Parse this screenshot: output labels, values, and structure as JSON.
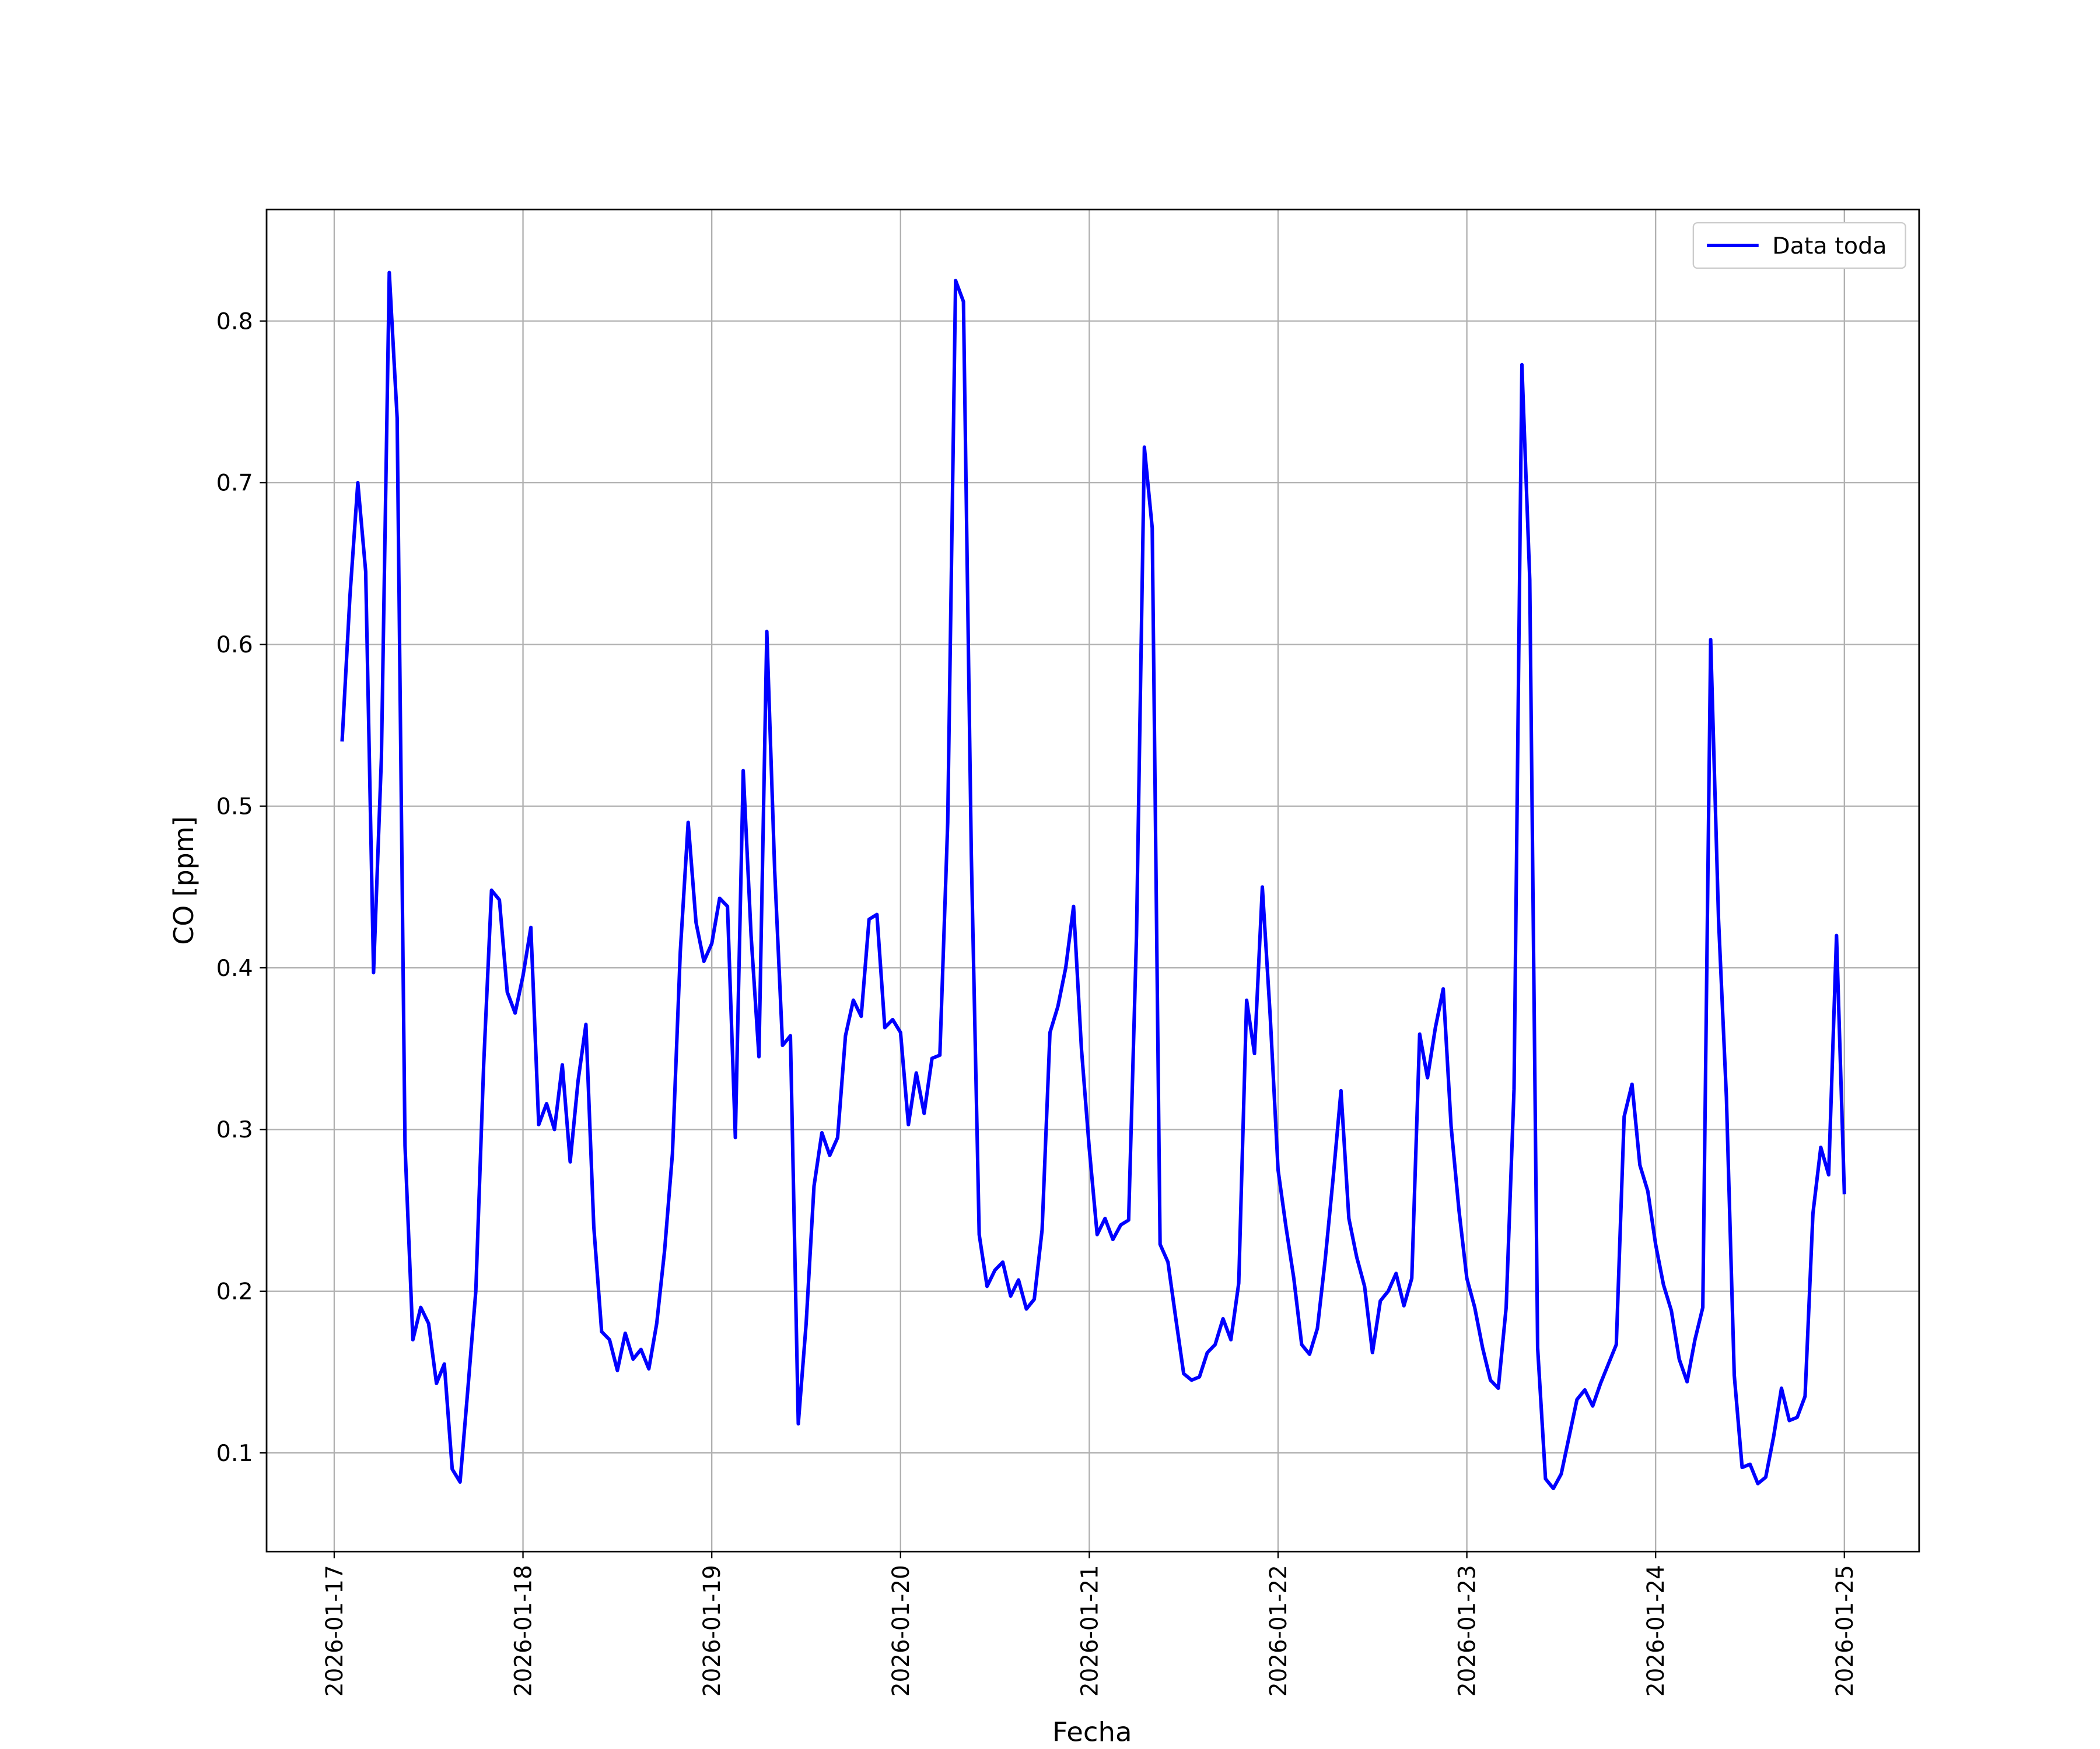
{
  "chart_data": {
    "type": "line",
    "x_label": "Fecha",
    "y_label": "CO [ppm]",
    "grid": true,
    "legend": "upper right",
    "x": [
      1,
      2,
      3,
      4,
      5,
      6,
      7,
      8,
      9,
      10,
      11,
      12,
      13,
      14,
      15,
      16,
      17,
      18,
      19,
      20,
      21,
      22,
      23,
      24,
      25,
      26,
      27,
      28,
      29,
      30,
      31,
      32,
      33,
      34,
      35,
      36,
      37,
      38,
      39,
      40,
      41,
      42,
      43,
      44,
      45,
      46,
      47,
      48,
      49,
      50,
      51,
      52,
      53,
      54,
      55,
      56,
      57,
      58,
      59,
      60,
      61,
      62,
      63,
      64,
      65,
      66,
      67,
      68,
      69,
      70,
      71,
      72,
      73,
      74,
      75,
      76,
      77,
      78,
      79,
      80,
      81,
      82,
      83,
      84,
      85,
      86,
      87,
      88,
      89,
      90,
      91,
      92,
      93,
      94,
      95,
      96,
      97,
      98,
      99,
      100,
      101,
      102,
      103,
      104,
      105,
      106,
      107,
      108,
      109,
      110,
      111,
      112,
      113,
      114,
      115,
      116,
      117,
      118,
      119,
      120,
      121,
      122,
      123,
      124,
      125,
      126,
      127,
      128,
      129,
      130,
      131,
      132,
      133,
      134,
      135,
      136,
      137,
      138,
      139,
      140,
      141,
      142,
      143,
      144,
      145,
      146,
      147,
      148,
      149,
      150,
      151,
      152,
      153,
      154,
      155,
      156,
      157,
      158,
      159,
      160,
      161,
      162,
      163,
      164,
      165,
      166,
      167,
      168,
      169,
      170,
      171,
      172,
      173,
      174,
      175,
      176,
      177,
      178,
      179,
      180,
      181,
      182,
      183,
      184,
      185,
      186,
      187,
      188,
      189,
      190,
      191,
      192
    ],
    "series": [
      {
        "name": "Data toda",
        "color": "#0000ff",
        "values": [
          0.54,
          0.63,
          0.7,
          0.645,
          0.397,
          0.53,
          0.83,
          0.74,
          0.29,
          0.17,
          0.19,
          0.18,
          0.143,
          0.155,
          0.09,
          0.082,
          0.14,
          0.2,
          0.34,
          0.448,
          0.442,
          0.385,
          0.372,
          0.395,
          0.425,
          0.303,
          0.316,
          0.3,
          0.34,
          0.28,
          0.33,
          0.365,
          0.24,
          0.175,
          0.17,
          0.151,
          0.174,
          0.158,
          0.164,
          0.152,
          0.18,
          0.225,
          0.285,
          0.41,
          0.49,
          0.428,
          0.404,
          0.415,
          0.443,
          0.438,
          0.295,
          0.522,
          0.42,
          0.345,
          0.608,
          0.46,
          0.352,
          0.358,
          0.118,
          0.18,
          0.265,
          0.298,
          0.284,
          0.295,
          0.358,
          0.38,
          0.37,
          0.43,
          0.433,
          0.363,
          0.368,
          0.36,
          0.303,
          0.335,
          0.31,
          0.344,
          0.346,
          0.49,
          0.825,
          0.812,
          0.47,
          0.235,
          0.203,
          0.213,
          0.218,
          0.197,
          0.207,
          0.189,
          0.195,
          0.238,
          0.36,
          0.376,
          0.4,
          0.438,
          0.35,
          0.288,
          0.235,
          0.245,
          0.232,
          0.241,
          0.244,
          0.42,
          0.722,
          0.672,
          0.229,
          0.218,
          0.183,
          0.149,
          0.145,
          0.147,
          0.162,
          0.167,
          0.183,
          0.17,
          0.205,
          0.38,
          0.347,
          0.45,
          0.37,
          0.275,
          0.24,
          0.208,
          0.167,
          0.161,
          0.177,
          0.22,
          0.27,
          0.324,
          0.245,
          0.221,
          0.203,
          0.162,
          0.194,
          0.2,
          0.211,
          0.191,
          0.208,
          0.359,
          0.332,
          0.363,
          0.387,
          0.302,
          0.25,
          0.208,
          0.19,
          0.165,
          0.145,
          0.14,
          0.19,
          0.325,
          0.773,
          0.64,
          0.165,
          0.084,
          0.078,
          0.087,
          0.11,
          0.133,
          0.139,
          0.129,
          0.143,
          0.155,
          0.167,
          0.308,
          0.328,
          0.278,
          0.262,
          0.229,
          0.204,
          0.188,
          0.158,
          0.144,
          0.17,
          0.19,
          0.603,
          0.43,
          0.32,
          0.148,
          0.091,
          0.093,
          0.081,
          0.085,
          0.11,
          0.14,
          0.12,
          0.122,
          0.135,
          0.248,
          0.289,
          0.272,
          0.42,
          0.26
        ]
      }
    ],
    "xlim": [
      -8.6,
      201.5
    ],
    "xticks": [
      {
        "value": 0,
        "label": "2026-01-17"
      },
      {
        "value": 24,
        "label": "2026-01-18"
      },
      {
        "value": 48,
        "label": "2026-01-19"
      },
      {
        "value": 72,
        "label": "2026-01-20"
      },
      {
        "value": 96,
        "label": "2026-01-21"
      },
      {
        "value": 120,
        "label": "2026-01-22"
      },
      {
        "value": 144,
        "label": "2026-01-23"
      },
      {
        "value": 168,
        "label": "2026-01-24"
      },
      {
        "value": 192,
        "label": "2026-01-25"
      }
    ],
    "ylim": [
      0.039,
      0.869
    ],
    "yticks": [
      0.1,
      0.2,
      0.3,
      0.4,
      0.5,
      0.6,
      0.7,
      0.8
    ]
  }
}
